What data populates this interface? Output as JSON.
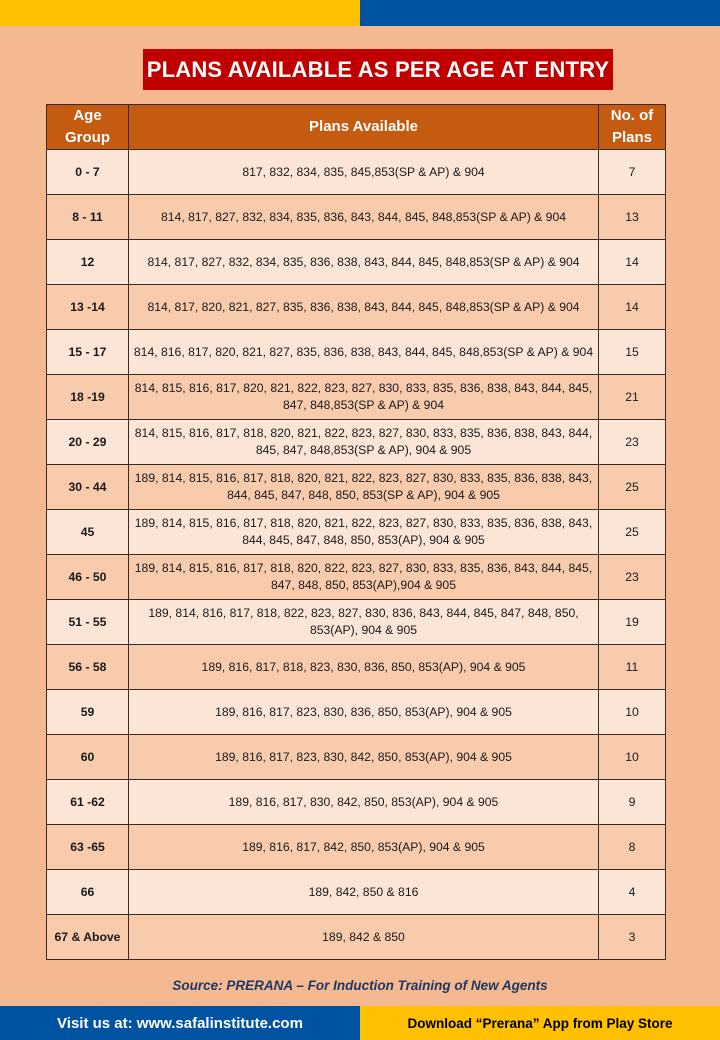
{
  "title": "PLANS AVAILABLE AS PER AGE AT ENTRY",
  "colors": {
    "background": "#f4b990",
    "title_bg": "#c00000",
    "header_bg": "#c55a11",
    "row_light": "#fbe5d6",
    "row_dark": "#f8cbad",
    "yellow": "#ffc000",
    "blue": "#0053a0"
  },
  "table": {
    "headers": [
      "Age Group",
      "Plans Available",
      "No. of Plans"
    ],
    "rows": [
      {
        "age": "0 - 7",
        "plans": "817, 832, 834, 835, 845,853(SP & AP) & 904",
        "count": "7"
      },
      {
        "age": "8 - 11",
        "plans": "814, 817, 827, 832, 834, 835, 836, 843, 844, 845, 848,853(SP & AP) & 904",
        "count": "13"
      },
      {
        "age": "12",
        "plans": "814, 817, 827, 832, 834, 835, 836, 838, 843, 844, 845, 848,853(SP & AP) & 904",
        "count": "14"
      },
      {
        "age": "13 -14",
        "plans": "814, 817, 820, 821, 827, 835, 836, 838, 843, 844, 845, 848,853(SP & AP) & 904",
        "count": "14"
      },
      {
        "age": "15 - 17",
        "plans": "814, 816, 817, 820, 821, 827, 835, 836, 838, 843, 844, 845, 848,853(SP & AP) & 904",
        "count": "15"
      },
      {
        "age": "18 -19",
        "plans": "814, 815, 816, 817, 820, 821, 822, 823, 827, 830, 833, 835, 836, 838, 843, 844, 845, 847, 848,853(SP & AP) & 904",
        "count": "21"
      },
      {
        "age": "20 - 29",
        "plans": "814, 815, 816, 817, 818, 820, 821, 822, 823, 827, 830, 833, 835, 836, 838, 843, 844, 845, 847, 848,853(SP & AP), 904 & 905",
        "count": "23"
      },
      {
        "age": "30 - 44",
        "plans": "189, 814, 815, 816, 817, 818, 820, 821, 822, 823, 827, 830, 833, 835, 836, 838, 843, 844, 845, 847, 848, 850, 853(SP & AP), 904 & 905",
        "count": "25"
      },
      {
        "age": "45",
        "plans": "189, 814, 815, 816, 817, 818, 820, 821, 822, 823, 827, 830, 833, 835, 836, 838, 843, 844, 845, 847, 848, 850, 853(AP), 904 & 905",
        "count": "25"
      },
      {
        "age": "46 - 50",
        "plans": "189, 814, 815, 816, 817, 818, 820, 822, 823, 827, 830, 833, 835, 836, 843, 844, 845, 847, 848, 850, 853(AP),904 & 905",
        "count": "23"
      },
      {
        "age": "51 - 55",
        "plans": "189, 814, 816, 817, 818, 822, 823, 827, 830, 836, 843, 844, 845, 847, 848, 850, 853(AP), 904 & 905",
        "count": "19"
      },
      {
        "age": "56 - 58",
        "plans": "189, 816, 817, 818, 823, 830, 836, 850, 853(AP), 904 & 905",
        "count": "11"
      },
      {
        "age": "59",
        "plans": "189, 816, 817, 823, 830, 836, 850, 853(AP), 904 & 905",
        "count": "10"
      },
      {
        "age": "60",
        "plans": "189, 816, 817, 823, 830, 842, 850, 853(AP), 904 & 905",
        "count": "10"
      },
      {
        "age": "61 -62",
        "plans": "189, 816, 817, 830, 842, 850, 853(AP), 904 & 905",
        "count": "9"
      },
      {
        "age": "63 -65",
        "plans": "189, 816, 817, 842, 850, 853(AP), 904 & 905",
        "count": "8"
      },
      {
        "age": "66",
        "plans": "189, 842, 850 & 816",
        "count": "4"
      },
      {
        "age": "67 & Above",
        "plans": "189, 842 & 850",
        "count": "3"
      }
    ]
  },
  "source": "Source: PRERANA – For Induction Training of New Agents",
  "footer": {
    "left": "Visit us at: www.safalinstitute.com",
    "right": "Download “Prerana” App from Play Store"
  }
}
